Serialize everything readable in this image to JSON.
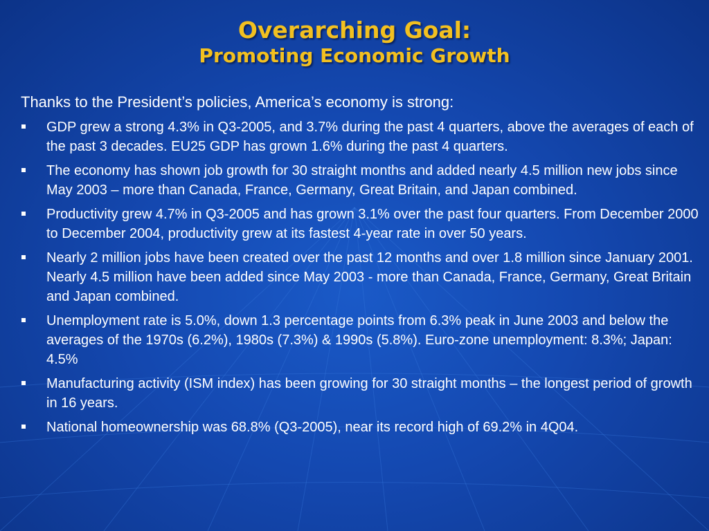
{
  "title": "Overarching Goal:",
  "subtitle": "Promoting Economic Growth",
  "intro": "Thanks to the President’s policies, America’s economy is strong:",
  "bullets": [
    "GDP grew a strong 4.3% in Q3-2005, and 3.7% during the past 4 quarters, above the averages of each of the past 3 decades.  EU25 GDP has grown 1.6% during the past 4 quarters.",
    "The economy has shown job growth for 30 straight months and added nearly 4.5 million new jobs since May 2003 – more than Canada, France, Germany, Great Britain, and Japan combined.",
    "Productivity grew 4.7% in Q3-2005 and has grown 3.1% over the past four quarters.  From December 2000 to December 2004, productivity grew at its fastest 4-year rate in over 50 years.",
    "Nearly 2 million jobs have been created over the past 12 months and over 1.8 million since January 2001.  Nearly 4.5 million have been added since May 2003 - more than Canada, France, Germany, Great Britain and Japan combined.",
    "Unemployment rate is 5.0%, down 1.3 percentage points from 6.3% peak in June 2003 and below the averages of the 1970s (6.2%), 1980s (7.3%) & 1990s (5.8%).  Euro-zone unemployment: 8.3%; Japan: 4.5%",
    "Manufacturing activity (ISM index) has been growing for 30 straight months – the longest period of growth in 16 years.",
    "National homeownership was 68.8% (Q3-2005), near its record high of 69.2% in 4Q04."
  ],
  "colors": {
    "background": "#1448b0",
    "title": "#f2c020",
    "text": "#ffffff"
  }
}
